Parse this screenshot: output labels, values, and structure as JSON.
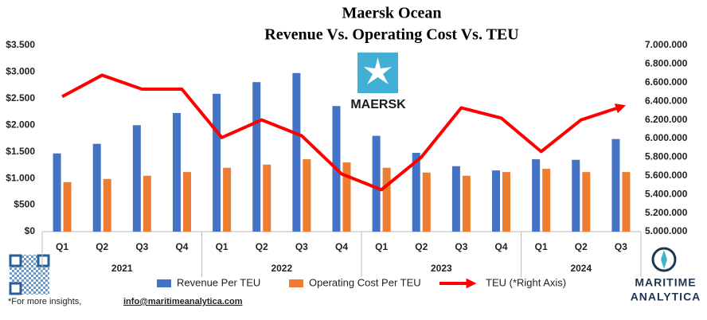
{
  "chart_data": {
    "type": "bar",
    "title": "Maersk Ocean",
    "subtitle": "Revenue Vs. Operating Cost Vs. TEU",
    "groups": [
      {
        "name": "2021",
        "categories": [
          "Q1",
          "Q2",
          "Q3",
          "Q4"
        ]
      },
      {
        "name": "2022",
        "categories": [
          "Q1",
          "Q2",
          "Q3",
          "Q4"
        ]
      },
      {
        "name": "2023",
        "categories": [
          "Q1",
          "Q2",
          "Q3",
          "Q4"
        ]
      },
      {
        "name": "2024",
        "categories": [
          "Q1",
          "Q2",
          "Q3"
        ]
      }
    ],
    "series": [
      {
        "name": "Revenue Per TEU",
        "type": "bar",
        "color": "#4472c4",
        "values": [
          1470,
          1650,
          2000,
          2230,
          2590,
          2810,
          2980,
          2360,
          1800,
          1480,
          1230,
          1150,
          1360,
          1350,
          1740
        ]
      },
      {
        "name": "Operating Cost Per TEU",
        "type": "bar",
        "color": "#ed7d31",
        "values": [
          930,
          990,
          1050,
          1120,
          1200,
          1260,
          1360,
          1300,
          1200,
          1110,
          1050,
          1120,
          1180,
          1120,
          1120
        ]
      },
      {
        "name": "TEU (*Right Axis)",
        "type": "line",
        "axis": "y2",
        "color": "#ff0000",
        "values": [
          6450000,
          6680000,
          6530000,
          6530000,
          6010000,
          6200000,
          6030000,
          5620000,
          5450000,
          5800000,
          6330000,
          6220000,
          5860000,
          6200000,
          6340000
        ]
      }
    ],
    "ylim": [
      0,
      3500
    ],
    "yticks": [
      {
        "value": 0,
        "label": "$0"
      },
      {
        "value": 500,
        "label": "$500"
      },
      {
        "value": 1000,
        "label": "$1.000"
      },
      {
        "value": 1500,
        "label": "$1.500"
      },
      {
        "value": 2000,
        "label": "$2.000"
      },
      {
        "value": 2500,
        "label": "$2.500"
      },
      {
        "value": 3000,
        "label": "$3.000"
      },
      {
        "value": 3500,
        "label": "$3.500"
      }
    ],
    "y2lim": [
      5000000,
      7000000
    ],
    "y2ticks": [
      {
        "value": 5000000,
        "label": "5.000.000"
      },
      {
        "value": 5200000,
        "label": "5.200.000"
      },
      {
        "value": 5400000,
        "label": "5.400.000"
      },
      {
        "value": 5600000,
        "label": "5.600.000"
      },
      {
        "value": 5800000,
        "label": "5.800.000"
      },
      {
        "value": 6000000,
        "label": "6.000.000"
      },
      {
        "value": 6200000,
        "label": "6.200.000"
      },
      {
        "value": 6400000,
        "label": "6.400.000"
      },
      {
        "value": 6600000,
        "label": "6.600.000"
      },
      {
        "value": 6800000,
        "label": "6.800.000"
      },
      {
        "value": 7000000,
        "label": "7.000.000"
      }
    ],
    "grid": false,
    "legend": "bottom"
  },
  "logo": {
    "text": "MAERSK"
  },
  "brand": {
    "line1": "MARITIME",
    "line2": "ANALYTICA"
  },
  "footer": {
    "note": "*For more insights,",
    "email": "info@maritimeanalytica.com"
  }
}
